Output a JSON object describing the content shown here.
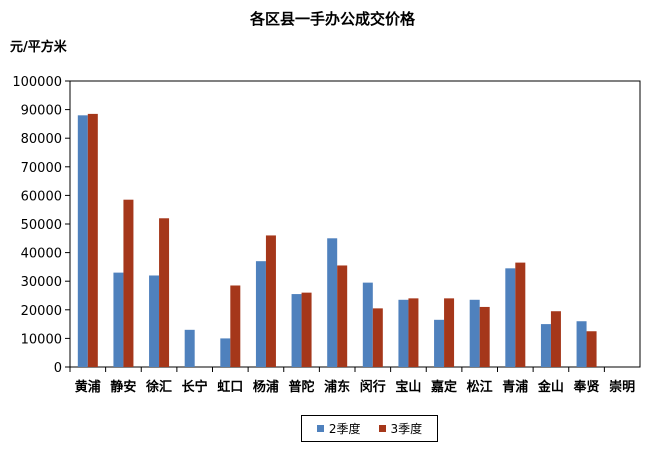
{
  "chart_data": {
    "type": "bar",
    "title": "各区县一手办公成交价格",
    "ylabel": "元/平方米",
    "xlabel": "",
    "ylim": [
      0,
      100000
    ],
    "yticks": [
      0,
      10000,
      20000,
      30000,
      40000,
      50000,
      60000,
      70000,
      80000,
      90000,
      100000
    ],
    "grid": false,
    "legend_position": "bottom",
    "categories": [
      "黄浦",
      "静安",
      "徐汇",
      "长宁",
      "虹口",
      "杨浦",
      "普陀",
      "浦东",
      "闵行",
      "宝山",
      "嘉定",
      "松江",
      "青浦",
      "金山",
      "奉贤",
      "崇明"
    ],
    "series": [
      {
        "name": "2季度",
        "color": "#4F81BD",
        "values": [
          88000,
          33000,
          32000,
          13000,
          10000,
          37000,
          25500,
          45000,
          29500,
          23500,
          16500,
          23500,
          34500,
          15000,
          16000,
          0
        ]
      },
      {
        "name": "3季度",
        "color": "#A5371A",
        "values": [
          88500,
          58500,
          52000,
          0,
          28500,
          46000,
          26000,
          35500,
          20500,
          24000,
          24000,
          21000,
          36500,
          19500,
          12500,
          0
        ]
      }
    ]
  }
}
